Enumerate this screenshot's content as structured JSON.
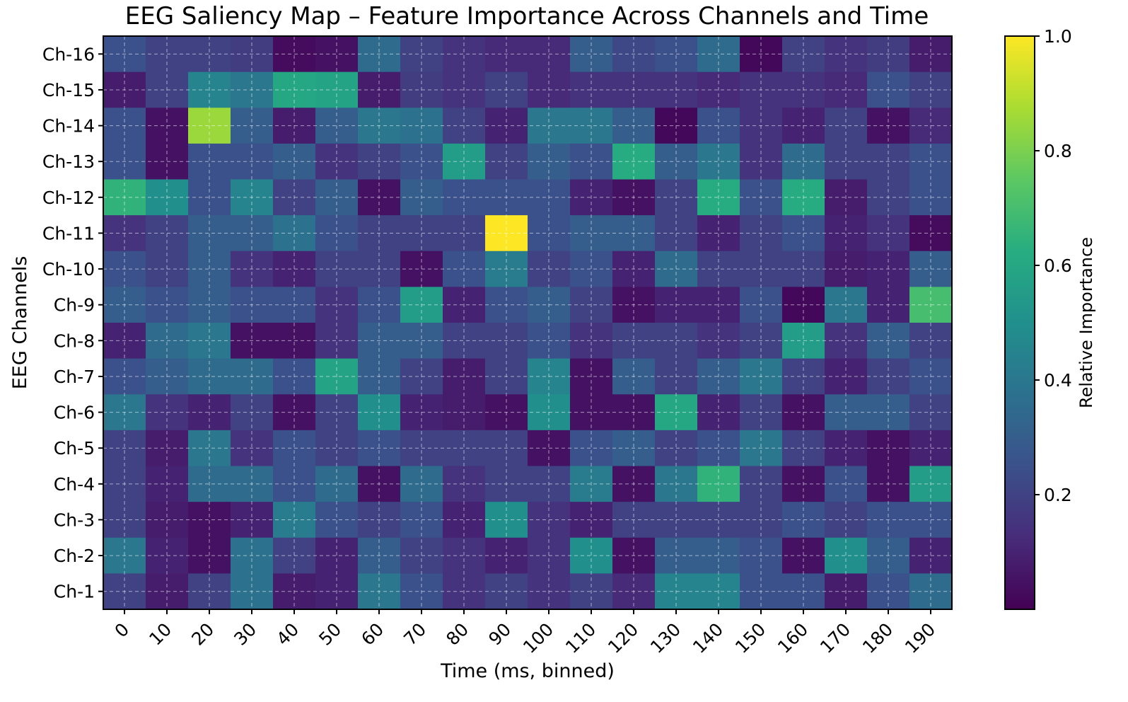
{
  "chart_data": {
    "type": "heatmap",
    "title": "EEG Saliency Map – Feature Importance Across Channels and Time",
    "xlabel": "Time (ms, binned)",
    "ylabel": "EEG Channels",
    "x": [
      "0",
      "10",
      "20",
      "30",
      "40",
      "50",
      "60",
      "70",
      "80",
      "90",
      "100",
      "110",
      "120",
      "130",
      "140",
      "150",
      "160",
      "170",
      "180",
      "190"
    ],
    "y": [
      "Ch-16",
      "Ch-15",
      "Ch-14",
      "Ch-13",
      "Ch-12",
      "Ch-11",
      "Ch-10",
      "Ch-9",
      "Ch-8",
      "Ch-7",
      "Ch-6",
      "Ch-5",
      "Ch-4",
      "Ch-3",
      "Ch-2",
      "Ch-1"
    ],
    "colormap": "viridis",
    "colorbar": {
      "label": "Relative Importance",
      "ticks": [
        "0.2",
        "0.4",
        "0.6",
        "0.8",
        "1.0"
      ],
      "range": [
        0.0,
        1.0
      ]
    },
    "grid": true,
    "values": [
      [
        0.25,
        0.2,
        0.2,
        0.18,
        0.03,
        0.05,
        0.35,
        0.2,
        0.15,
        0.12,
        0.12,
        0.3,
        0.22,
        0.25,
        0.35,
        0.02,
        0.2,
        0.15,
        0.18,
        0.08
      ],
      [
        0.08,
        0.2,
        0.45,
        0.4,
        0.6,
        0.58,
        0.08,
        0.18,
        0.15,
        0.2,
        0.12,
        0.15,
        0.15,
        0.15,
        0.12,
        0.15,
        0.15,
        0.12,
        0.25,
        0.2
      ],
      [
        0.25,
        0.05,
        0.85,
        0.3,
        0.08,
        0.3,
        0.4,
        0.38,
        0.2,
        0.1,
        0.4,
        0.4,
        0.3,
        0.02,
        0.25,
        0.15,
        0.1,
        0.2,
        0.05,
        0.12
      ],
      [
        0.25,
        0.05,
        0.25,
        0.25,
        0.3,
        0.15,
        0.2,
        0.25,
        0.55,
        0.2,
        0.3,
        0.25,
        0.62,
        0.3,
        0.4,
        0.15,
        0.35,
        0.2,
        0.2,
        0.25
      ],
      [
        0.65,
        0.5,
        0.25,
        0.45,
        0.2,
        0.3,
        0.05,
        0.3,
        0.25,
        0.25,
        0.25,
        0.1,
        0.05,
        0.2,
        0.62,
        0.25,
        0.62,
        0.08,
        0.2,
        0.25
      ],
      [
        0.15,
        0.2,
        0.3,
        0.3,
        0.38,
        0.25,
        0.2,
        0.2,
        0.2,
        1.0,
        0.25,
        0.3,
        0.3,
        0.2,
        0.1,
        0.2,
        0.25,
        0.1,
        0.15,
        0.03
      ],
      [
        0.25,
        0.2,
        0.3,
        0.15,
        0.1,
        0.2,
        0.2,
        0.05,
        0.25,
        0.42,
        0.2,
        0.25,
        0.1,
        0.35,
        0.2,
        0.2,
        0.2,
        0.08,
        0.1,
        0.3
      ],
      [
        0.3,
        0.25,
        0.3,
        0.25,
        0.25,
        0.15,
        0.25,
        0.55,
        0.1,
        0.25,
        0.3,
        0.2,
        0.05,
        0.1,
        0.1,
        0.25,
        0.02,
        0.4,
        0.1,
        0.7
      ],
      [
        0.1,
        0.35,
        0.4,
        0.05,
        0.05,
        0.15,
        0.3,
        0.3,
        0.2,
        0.2,
        0.25,
        0.15,
        0.2,
        0.2,
        0.15,
        0.2,
        0.55,
        0.15,
        0.3,
        0.2
      ],
      [
        0.25,
        0.3,
        0.35,
        0.35,
        0.25,
        0.58,
        0.3,
        0.2,
        0.08,
        0.2,
        0.45,
        0.05,
        0.3,
        0.2,
        0.3,
        0.4,
        0.2,
        0.1,
        0.2,
        0.25
      ],
      [
        0.4,
        0.15,
        0.1,
        0.2,
        0.05,
        0.2,
        0.5,
        0.1,
        0.08,
        0.05,
        0.5,
        0.05,
        0.05,
        0.6,
        0.1,
        0.2,
        0.05,
        0.3,
        0.3,
        0.2
      ],
      [
        0.2,
        0.08,
        0.4,
        0.15,
        0.25,
        0.2,
        0.25,
        0.2,
        0.2,
        0.2,
        0.05,
        0.25,
        0.3,
        0.2,
        0.25,
        0.4,
        0.2,
        0.1,
        0.05,
        0.1
      ],
      [
        0.2,
        0.1,
        0.35,
        0.35,
        0.25,
        0.35,
        0.05,
        0.35,
        0.15,
        0.2,
        0.2,
        0.42,
        0.05,
        0.4,
        0.65,
        0.2,
        0.05,
        0.25,
        0.05,
        0.55
      ],
      [
        0.2,
        0.08,
        0.05,
        0.1,
        0.42,
        0.25,
        0.2,
        0.25,
        0.1,
        0.5,
        0.15,
        0.1,
        0.2,
        0.2,
        0.2,
        0.2,
        0.25,
        0.2,
        0.25,
        0.25
      ],
      [
        0.4,
        0.1,
        0.05,
        0.38,
        0.2,
        0.1,
        0.3,
        0.2,
        0.15,
        0.1,
        0.15,
        0.5,
        0.05,
        0.3,
        0.3,
        0.25,
        0.05,
        0.5,
        0.3,
        0.1
      ],
      [
        0.2,
        0.08,
        0.2,
        0.38,
        0.08,
        0.1,
        0.4,
        0.25,
        0.15,
        0.2,
        0.15,
        0.2,
        0.12,
        0.45,
        0.45,
        0.25,
        0.25,
        0.08,
        0.25,
        0.35
      ]
    ]
  }
}
